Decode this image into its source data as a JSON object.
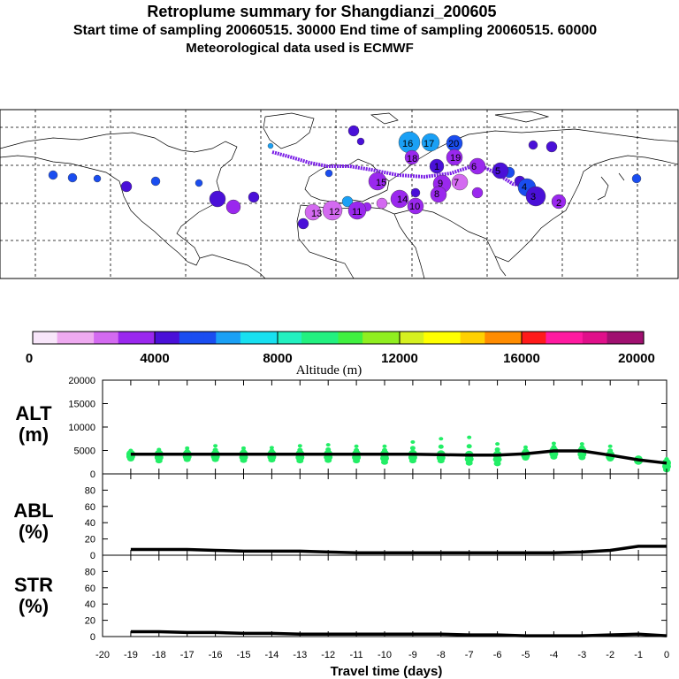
{
  "title": {
    "line1": "Retroplume summary for Shangdianzi_200605",
    "line2": "Start time of sampling 20060515. 30000     End time of sampling 20060515. 60000",
    "line3": "Meteorological data used is ECMWF"
  },
  "colorbar": {
    "label": "Altitude (m)",
    "ticks": [
      "0",
      "4000",
      "8000",
      "12000",
      "16000",
      "20000"
    ]
  },
  "chart_data": [
    {
      "type": "line",
      "panel": "ALT",
      "ylabel_top": "ALT",
      "ylabel_bottom": "(m)",
      "ylim": [
        0,
        20000
      ],
      "yticks": [
        "20000",
        "15000",
        "10000",
        "5000",
        "0"
      ],
      "x": [
        -19,
        -18,
        -17,
        -16,
        -15,
        -14,
        -13,
        -12,
        -11,
        -10,
        -9,
        -8,
        -7,
        -6,
        -5,
        -4,
        -3,
        -2,
        -1,
        0
      ],
      "values": [
        4200,
        4200,
        4200,
        4200,
        4200,
        4200,
        4200,
        4200,
        4200,
        4200,
        4200,
        4100,
        4000,
        4000,
        4300,
        4900,
        4900,
        4000,
        3000,
        2300
      ],
      "scatter_max": [
        5000,
        5200,
        5500,
        6000,
        5500,
        5600,
        6000,
        6200,
        5900,
        5900,
        6800,
        7500,
        7800,
        6400,
        5700,
        6500,
        6400,
        5900,
        3500,
        3200
      ],
      "scatter_min": [
        3200,
        2800,
        3100,
        3100,
        2900,
        3000,
        2800,
        2900,
        2800,
        2500,
        2800,
        2800,
        2300,
        2200,
        3400,
        3600,
        3500,
        3200,
        2500,
        900
      ]
    },
    {
      "type": "line",
      "panel": "ABL",
      "ylabel_top": "ABL",
      "ylabel_bottom": "(%)",
      "ylim": [
        0,
        100
      ],
      "yticks": [
        "80",
        "60",
        "40",
        "20",
        "0"
      ],
      "x": [
        -19,
        -18,
        -17,
        -16,
        -15,
        -14,
        -13,
        -12,
        -11,
        -10,
        -9,
        -8,
        -7,
        -6,
        -5,
        -4,
        -3,
        -2,
        -1,
        0
      ],
      "values": [
        7,
        7,
        7,
        6,
        5,
        5,
        5,
        4,
        3,
        3,
        3,
        3,
        3,
        3,
        3,
        3,
        4,
        6,
        11,
        11
      ]
    },
    {
      "type": "line",
      "panel": "STR",
      "ylabel_top": "STR",
      "ylabel_bottom": "(%)",
      "ylim": [
        0,
        100
      ],
      "yticks": [
        "80",
        "60",
        "40",
        "20",
        "0"
      ],
      "x": [
        -19,
        -18,
        -17,
        -16,
        -15,
        -14,
        -13,
        -12,
        -11,
        -10,
        -9,
        -8,
        -7,
        -6,
        -5,
        -4,
        -3,
        -2,
        -1,
        0
      ],
      "values": [
        6,
        6,
        5,
        5,
        4,
        4,
        3,
        3,
        3,
        3,
        3,
        3,
        2,
        2,
        1,
        1,
        1,
        2,
        3,
        1
      ]
    }
  ],
  "xaxis": {
    "ticks": [
      "-20",
      "-19",
      "-18",
      "-17",
      "-16",
      "-15",
      "-14",
      "-13",
      "-12",
      "-11",
      "-10",
      "-9",
      "-8",
      "-7",
      "-6",
      "-5",
      "-4",
      "-3",
      "-2",
      "-1",
      "0"
    ],
    "label": "Travel time (days)"
  },
  "map": {
    "clusters": [
      {
        "label": "16",
        "alt": 6500
      },
      {
        "label": "17",
        "alt": 6300
      },
      {
        "label": "20",
        "alt": 5200
      },
      {
        "label": "1",
        "alt": 4600
      },
      {
        "label": "19",
        "alt": 3500
      },
      {
        "label": "18",
        "alt": 3200
      },
      {
        "label": "15",
        "alt": 3000
      },
      {
        "label": "14",
        "alt": 3300
      },
      {
        "label": "13",
        "alt": 2800
      },
      {
        "label": "12",
        "alt": 2500
      },
      {
        "label": "11",
        "alt": 3000
      },
      {
        "label": "10",
        "alt": 3200
      },
      {
        "label": "9",
        "alt": 3800
      },
      {
        "label": "8",
        "alt": 3500
      },
      {
        "label": "7",
        "alt": 2900
      },
      {
        "label": "6",
        "alt": 3300
      },
      {
        "label": "5",
        "alt": 4600
      },
      {
        "label": "4",
        "alt": 5400
      },
      {
        "label": "3",
        "alt": 4100
      },
      {
        "label": "2",
        "alt": 3700
      }
    ]
  },
  "colors": {
    "scatter": "#22ee66",
    "line": "#000000"
  }
}
